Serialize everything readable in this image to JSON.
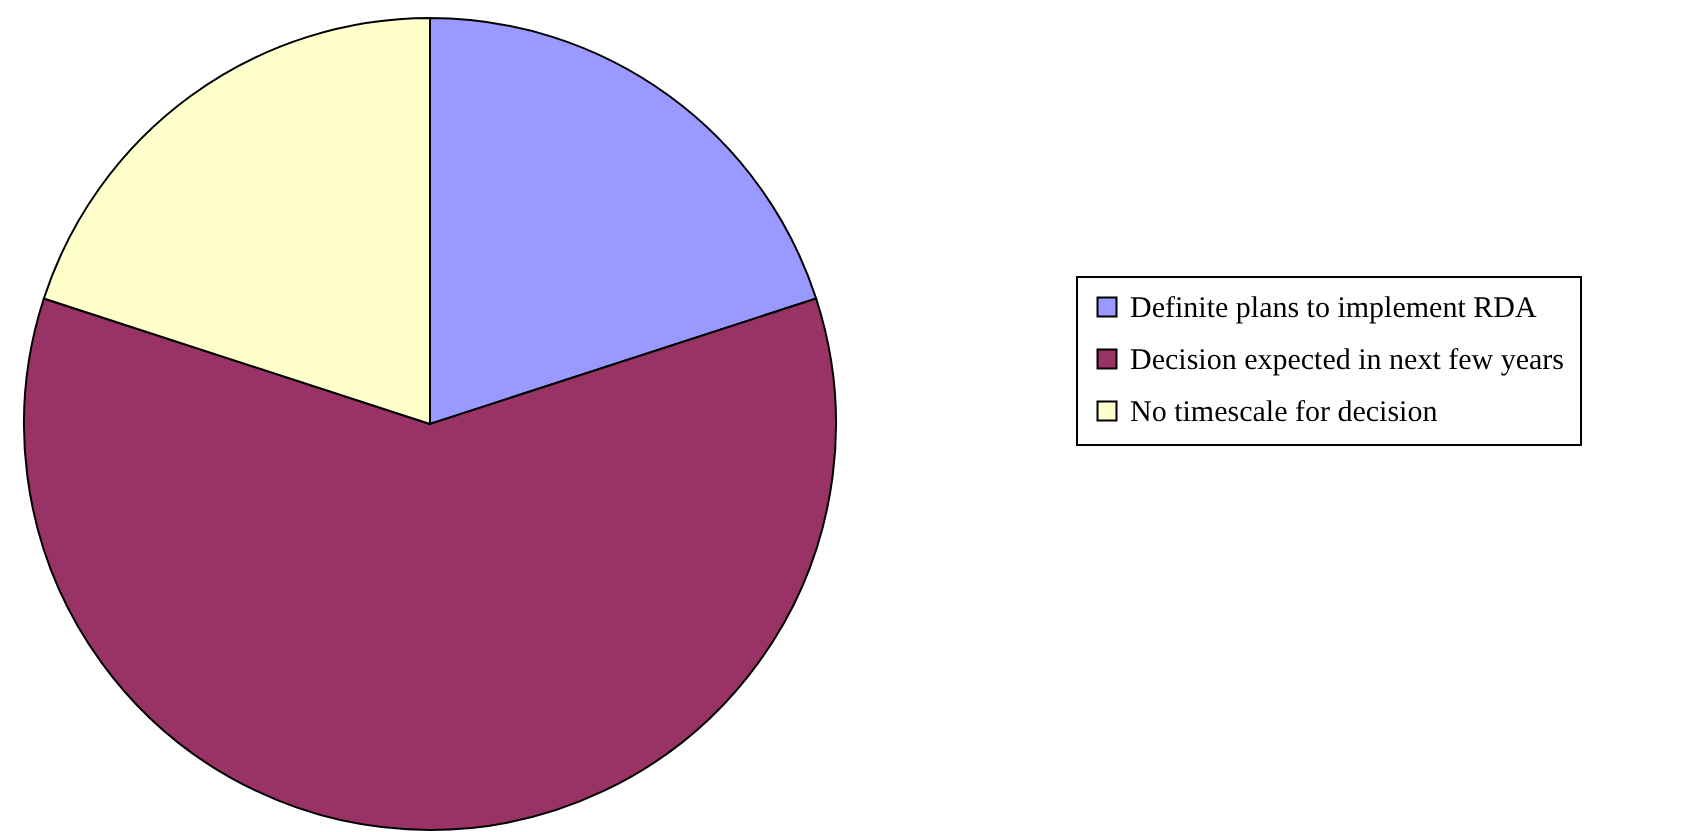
{
  "chart_data": {
    "type": "pie",
    "categories": [
      "Definite plans to implement RDA",
      "Decision expected in next few years",
      "No timescale for decision"
    ],
    "values": [
      20,
      60,
      20
    ],
    "colors": [
      "#9999ff",
      "#993366",
      "#ffffcc"
    ],
    "legend": "right"
  }
}
